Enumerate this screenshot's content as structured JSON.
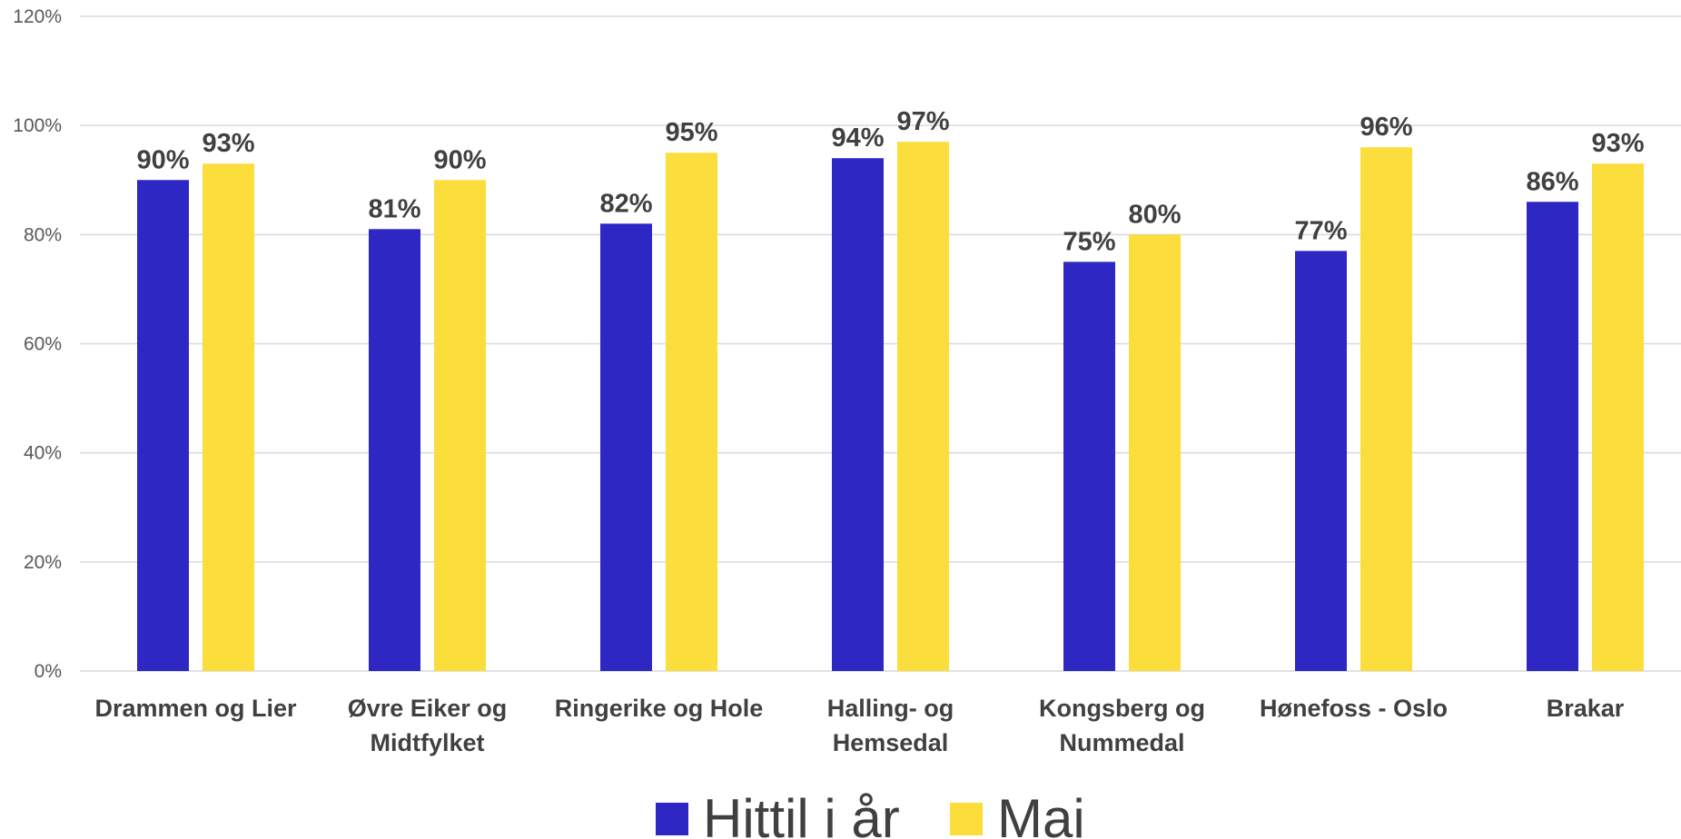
{
  "chart_data": {
    "type": "bar",
    "categories": [
      [
        "Drammen og Lier"
      ],
      [
        "Øvre Eiker og",
        "Midtfylket"
      ],
      [
        "Ringerike  og Hole"
      ],
      [
        "Halling- og",
        "Hemsedal"
      ],
      [
        "Kongsberg og",
        "Nummedal"
      ],
      [
        "Hønefoss - Oslo"
      ],
      [
        "Brakar"
      ]
    ],
    "series": [
      {
        "name": "Hittil i år",
        "color": "#2e27c4",
        "values": [
          90,
          81,
          82,
          94,
          75,
          77,
          86
        ],
        "labels": [
          "90%",
          "81%",
          "82%",
          "94%",
          "75%",
          "77%",
          "86%"
        ]
      },
      {
        "name": "Mai",
        "color": "#fbdd3c",
        "values": [
          93,
          90,
          95,
          97,
          80,
          96,
          93
        ],
        "labels": [
          "93%",
          "90%",
          "95%",
          "97%",
          "80%",
          "96%",
          "93%"
        ]
      }
    ],
    "y_ticks": [
      {
        "value": 0,
        "label": "0%"
      },
      {
        "value": 20,
        "label": "20%"
      },
      {
        "value": 40,
        "label": "40%"
      },
      {
        "value": 60,
        "label": "60%"
      },
      {
        "value": 80,
        "label": "80%"
      },
      {
        "value": 100,
        "label": "100%"
      },
      {
        "value": 120,
        "label": "120%"
      }
    ],
    "ylim": [
      0,
      120
    ],
    "grid": true,
    "legend_position": "bottom"
  }
}
